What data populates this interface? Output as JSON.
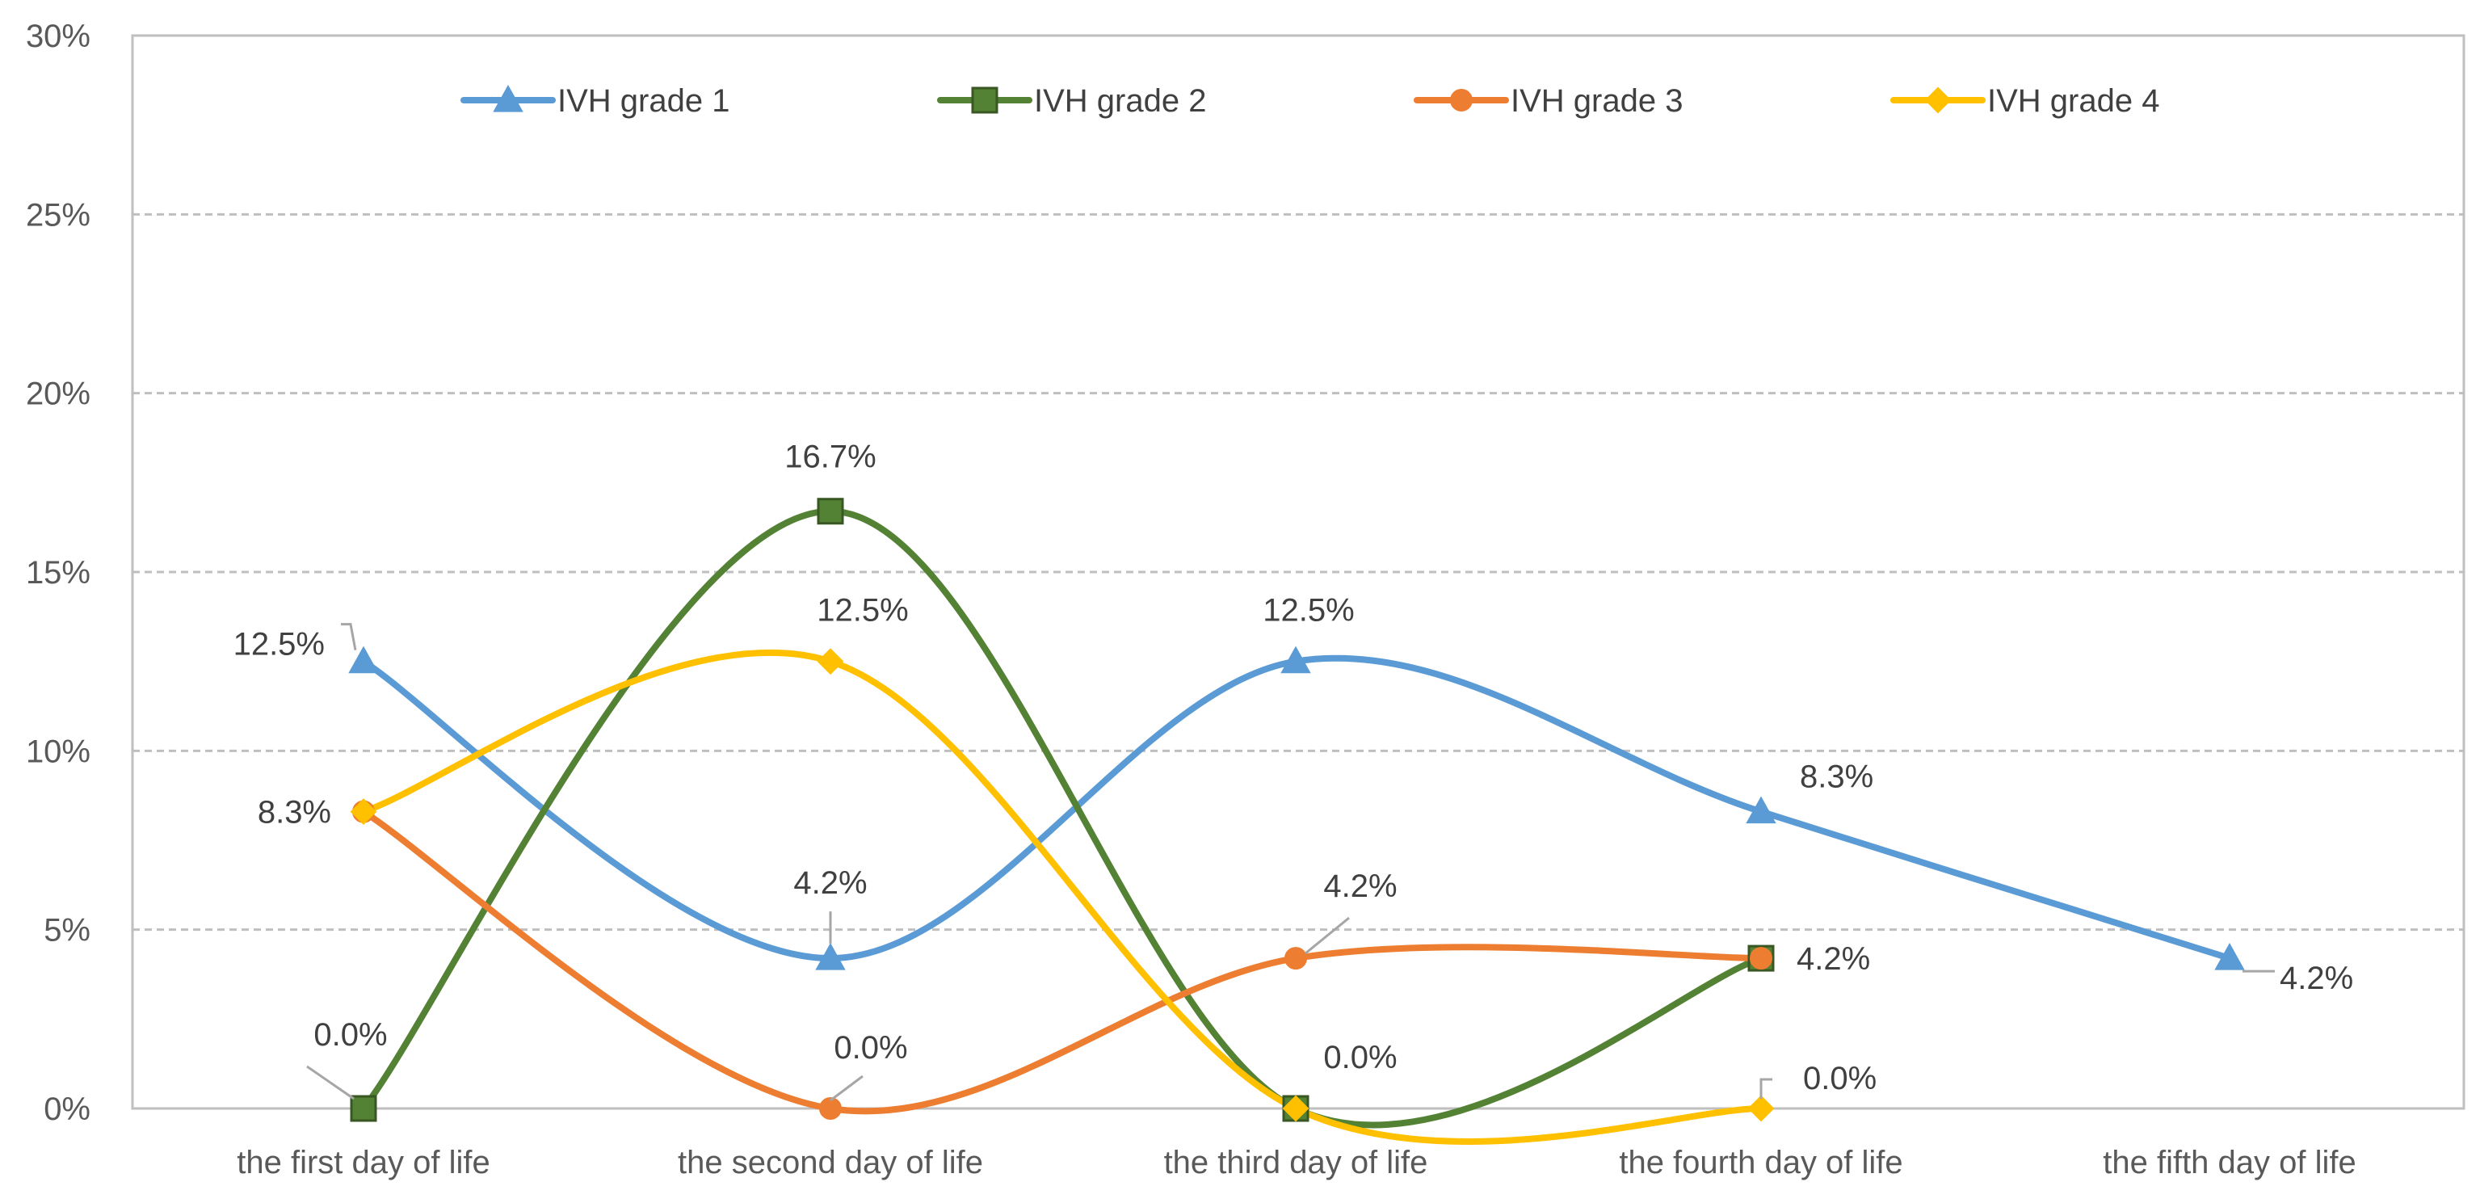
{
  "chart_data": {
    "type": "line",
    "categories": [
      "the first day of life",
      "the second day of life",
      "the third day of life",
      "the fourth day of life",
      "the fifth day of life"
    ],
    "ylim": [
      0,
      30
    ],
    "yticks": [
      0,
      5,
      10,
      15,
      20,
      25,
      30
    ],
    "ytick_labels": [
      "0%",
      "5%",
      "10%",
      "15%",
      "20%",
      "25%",
      "30%"
    ],
    "grid": true,
    "legend_position": "top",
    "smooth": true,
    "series": [
      {
        "name": "IVH grade 1",
        "color": "#5B9BD5",
        "marker": "triangle",
        "values": [
          12.5,
          4.2,
          12.5,
          8.3,
          4.2
        ],
        "labels": [
          "12.5%",
          "4.2%",
          "12.5%",
          "8.3%",
          "4.2%"
        ]
      },
      {
        "name": "IVH grade 2",
        "color": "#548235",
        "marker": "square",
        "values": [
          0.0,
          16.7,
          0.0,
          4.2,
          null
        ],
        "labels": [
          "0.0%",
          "16.7%",
          "0.0%",
          "4.2%",
          null
        ]
      },
      {
        "name": "IVH grade 3",
        "color": "#ED7D31",
        "marker": "circle",
        "values": [
          8.3,
          0.0,
          4.2,
          4.2,
          null
        ],
        "labels": [
          "8.3%",
          "0.0%",
          "4.2%",
          null,
          null
        ]
      },
      {
        "name": "IVH grade 4",
        "color": "#FFC000",
        "marker": "diamond",
        "values": [
          8.3,
          12.5,
          0.0,
          0.0,
          null
        ],
        "labels": [
          null,
          "12.5%",
          null,
          "0.0%",
          null
        ]
      }
    ]
  }
}
